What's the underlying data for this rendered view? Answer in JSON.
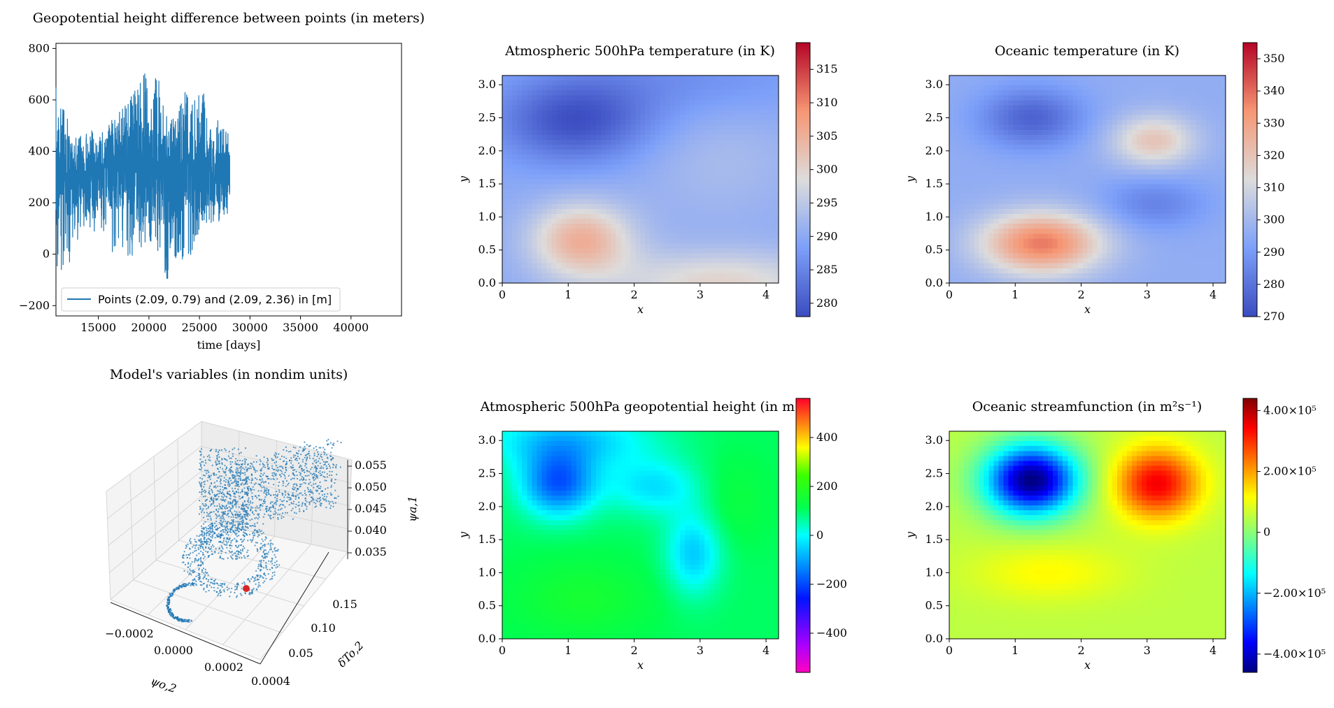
{
  "chart_data": [
    {
      "id": "geopotential_diff",
      "type": "line",
      "title": "Geopotential height difference between points (in meters)",
      "xlabel": "time [days]",
      "ylabel": "",
      "xlim": [
        10800,
        45000
      ],
      "ylim": [
        -240,
        820
      ],
      "xticks": [
        15000,
        20000,
        25000,
        30000,
        35000,
        40000
      ],
      "xtick_labels": [
        "15000",
        "20000",
        "25000",
        "30000",
        "35000",
        "40000"
      ],
      "yticks": [
        -200,
        0,
        200,
        400,
        600,
        800
      ],
      "ytick_labels": [
        "−200",
        "0",
        "200",
        "400",
        "600",
        "800"
      ],
      "color": "#1f77b4",
      "data_range": [
        10800,
        28000
      ],
      "series": [
        {
          "name": "Points (2.09, 0.79) and (2.09, 2.36) in  [m]",
          "x": [
            10800,
            11300,
            11800,
            12300,
            12800,
            13300,
            13800,
            14300,
            14800,
            15300,
            15800,
            16300,
            16800,
            17300,
            17800,
            18300,
            18800,
            19300,
            19800,
            20300,
            20800,
            21300,
            21800,
            22300,
            22800,
            23300,
            23800,
            24300,
            24800,
            25300,
            25800,
            26300,
            26800,
            27300,
            27800
          ],
          "y": [
            300,
            330,
            310,
            280,
            290,
            300,
            290,
            270,
            300,
            320,
            330,
            320,
            310,
            330,
            340,
            330,
            350,
            340,
            330,
            320,
            310,
            300,
            290,
            280,
            300,
            310,
            320,
            300,
            290,
            310,
            320,
            300,
            310,
            300,
            320
          ],
          "min_envelope": [
            -150,
            -80,
            0,
            -60,
            40,
            80,
            60,
            20,
            120,
            100,
            60,
            -20,
            40,
            20,
            0,
            -40,
            20,
            10,
            60,
            20,
            -20,
            -40,
            -120,
            -60,
            -30,
            -40,
            -20,
            0,
            40,
            60,
            80,
            100,
            120,
            150,
            140
          ],
          "max_envelope": [
            660,
            580,
            560,
            520,
            480,
            470,
            480,
            500,
            450,
            480,
            470,
            560,
            540,
            580,
            600,
            620,
            660,
            700,
            790,
            660,
            720,
            620,
            660,
            560,
            600,
            620,
            640,
            600,
            620,
            660,
            560,
            520,
            540,
            500,
            480
          ]
        }
      ],
      "legend": {
        "location": "lower-left",
        "entry": "Points (2.09, 0.79) and (2.09, 2.36) in  [m]"
      }
    },
    {
      "id": "model_variables_3d",
      "type": "scatter",
      "title": "Model's variables (in nondim units)",
      "xlabel": "ψo,2",
      "ylabel": "δTo,2",
      "zlabel": "ψa,1",
      "xtick_labels": [
        "−0.0002",
        "0.0000",
        "0.0002",
        "0.0004"
      ],
      "ytick_labels": [
        "0.05",
        "0.10",
        "0.15"
      ],
      "ztick_labels": [
        "0.035",
        "0.040",
        "0.045",
        "0.050",
        "0.055"
      ],
      "color": "#1f77b4",
      "current_point_color": "#d62728",
      "grid": true
    },
    {
      "id": "atm_temperature",
      "type": "heatmap",
      "title": "Atmospheric 500hPa temperature (in K)",
      "xlabel": "x",
      "ylabel": "y",
      "xlim": [
        0,
        4.19
      ],
      "ylim": [
        0,
        3.14
      ],
      "xticks": [
        "0",
        "1",
        "2",
        "3",
        "4"
      ],
      "yticks": [
        "0.0",
        "0.5",
        "1.0",
        "1.5",
        "2.0",
        "2.5",
        "3.0"
      ],
      "colormap": "coolwarm",
      "colorbar_range": [
        278,
        319
      ],
      "colorbar_ticks": [
        "280",
        "285",
        "290",
        "295",
        "300",
        "305",
        "310",
        "315"
      ],
      "base_value": 290,
      "features": [
        {
          "x": 1.1,
          "y": 2.45,
          "sx": 0.8,
          "sy": 0.45,
          "amp": -11
        },
        {
          "x": 1.2,
          "y": 0.65,
          "sx": 0.55,
          "sy": 0.4,
          "amp": 15
        },
        {
          "x": 3.3,
          "y": 0.0,
          "sx": 1.2,
          "sy": 0.35,
          "amp": 10
        },
        {
          "x": 3.3,
          "y": 1.9,
          "sx": 0.9,
          "sy": 0.7,
          "amp": 3
        },
        {
          "x": 2.8,
          "y": 3.1,
          "sx": 1.4,
          "sy": 0.5,
          "amp": -4
        }
      ]
    },
    {
      "id": "ocean_temperature",
      "type": "heatmap",
      "title": "Oceanic temperature (in K)",
      "xlabel": "x",
      "ylabel": "y",
      "xlim": [
        0,
        4.19
      ],
      "ylim": [
        0,
        3.14
      ],
      "xticks": [
        "0",
        "1",
        "2",
        "3",
        "4"
      ],
      "yticks": [
        "0.0",
        "0.5",
        "1.0",
        "1.5",
        "2.0",
        "2.5",
        "3.0"
      ],
      "colormap": "coolwarm",
      "colorbar_range": [
        270,
        355
      ],
      "colorbar_ticks": [
        "270",
        "280",
        "290",
        "300",
        "310",
        "320",
        "330",
        "340",
        "350"
      ],
      "base_value": 296,
      "features": [
        {
          "x": 1.25,
          "y": 2.5,
          "sx": 0.55,
          "sy": 0.32,
          "amp": -20
        },
        {
          "x": 1.4,
          "y": 0.6,
          "sx": 0.65,
          "sy": 0.33,
          "amp": 42
        },
        {
          "x": 3.1,
          "y": 2.15,
          "sx": 0.45,
          "sy": 0.28,
          "amp": 24
        },
        {
          "x": 3.1,
          "y": 1.2,
          "sx": 0.55,
          "sy": 0.28,
          "amp": -12
        }
      ]
    },
    {
      "id": "atm_geopotential",
      "type": "heatmap",
      "title": "Atmospheric 500hPa geopotential height (in m)",
      "xlabel": "x",
      "ylabel": "y",
      "xlim": [
        0,
        4.19
      ],
      "ylim": [
        0,
        3.14
      ],
      "xticks": [
        "0",
        "1",
        "2",
        "3",
        "4"
      ],
      "yticks": [
        "0.0",
        "0.5",
        "1.0",
        "1.5",
        "2.0",
        "2.5",
        "3.0"
      ],
      "colormap": "gist_rainbow",
      "colorbar_range": [
        -560,
        560
      ],
      "colorbar_ticks": [
        "−400",
        "−200",
        "0",
        "200",
        "400"
      ],
      "base_value": 100,
      "features": [
        {
          "x": 0.85,
          "y": 2.35,
          "sx": 0.4,
          "sy": 0.35,
          "amp": -280
        },
        {
          "x": 2.9,
          "y": 1.3,
          "sx": 0.3,
          "sy": 0.45,
          "amp": -160
        },
        {
          "x": 2.3,
          "y": 2.3,
          "sx": 0.5,
          "sy": 0.3,
          "amp": -130
        },
        {
          "x": 1.0,
          "y": 3.0,
          "sx": 0.9,
          "sy": 0.3,
          "amp": -160
        },
        {
          "x": 1.2,
          "y": 0.6,
          "sx": 0.8,
          "sy": 0.45,
          "amp": 60
        },
        {
          "x": 3.5,
          "y": 2.1,
          "sx": 0.4,
          "sy": 0.5,
          "amp": 40
        }
      ]
    },
    {
      "id": "ocean_streamfunction",
      "type": "heatmap",
      "title": "Oceanic streamfunction (in m²s⁻¹)",
      "xlabel": "x",
      "ylabel": "y",
      "xlim": [
        0,
        4.19
      ],
      "ylim": [
        0,
        3.14
      ],
      "xticks": [
        "0",
        "1",
        "2",
        "3",
        "4"
      ],
      "yticks": [
        "0.0",
        "0.5",
        "1.0",
        "1.5",
        "2.0",
        "2.5",
        "3.0"
      ],
      "colormap": "jet",
      "colorbar_range": [
        -460000,
        440000
      ],
      "colorbar_ticks": [
        "−4.00×10⁵",
        "−2.00×10⁵",
        "0",
        "2.00×10⁵",
        "4.00×10⁵"
      ],
      "base_value": 50000,
      "features": [
        {
          "x": 1.25,
          "y": 2.4,
          "sx": 0.5,
          "sy": 0.38,
          "amp": -510000
        },
        {
          "x": 3.15,
          "y": 2.35,
          "sx": 0.45,
          "sy": 0.38,
          "amp": 300000
        },
        {
          "x": 1.5,
          "y": 1.0,
          "sx": 0.8,
          "sy": 0.3,
          "amp": 70000
        }
      ]
    }
  ]
}
